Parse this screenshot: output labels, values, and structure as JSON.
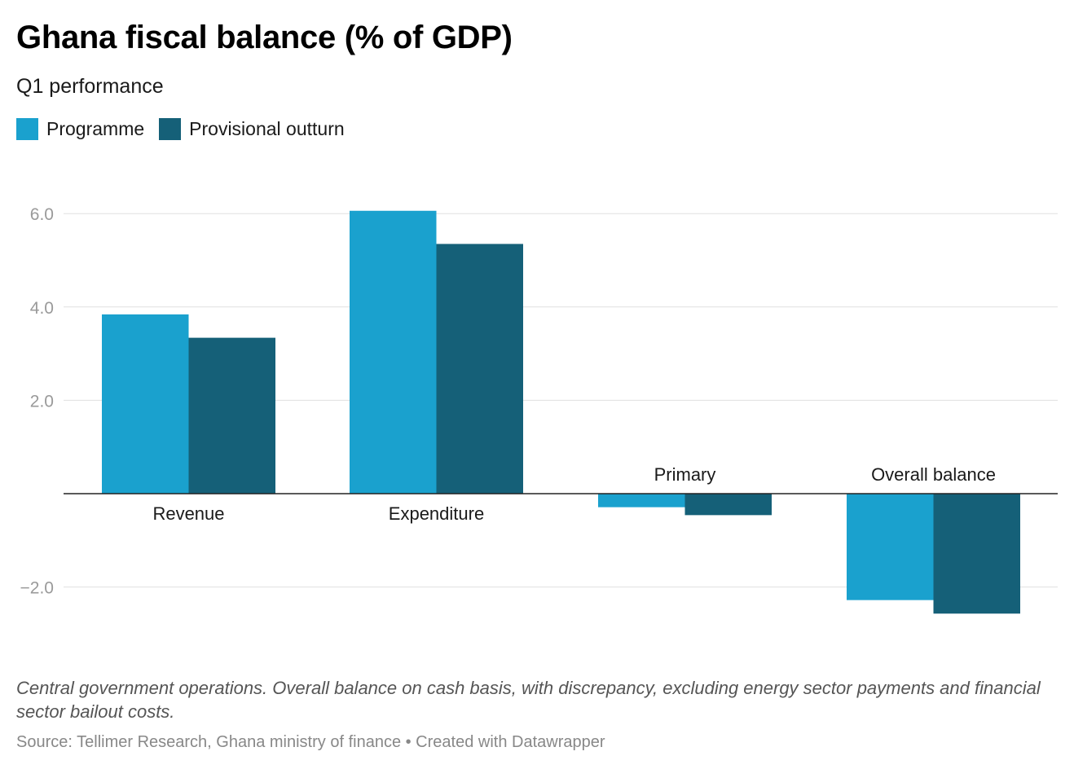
{
  "header": {
    "title": "Ghana fiscal balance (% of GDP)",
    "subtitle": "Q1 performance"
  },
  "legend": [
    {
      "label": "Programme",
      "color": "#1aa1ce"
    },
    {
      "label": "Provisional outturn",
      "color": "#156078"
    }
  ],
  "chart_data": {
    "type": "bar",
    "categories": [
      "Revenue",
      "Expenditure",
      "Primary",
      "Overall balance"
    ],
    "series": [
      {
        "name": "Programme",
        "color": "#1aa1ce",
        "values": [
          3.84,
          6.06,
          -0.29,
          -2.28
        ]
      },
      {
        "name": "Provisional outturn",
        "color": "#156078",
        "values": [
          3.34,
          5.35,
          -0.46,
          -2.57
        ]
      }
    ],
    "yticks": [
      6.0,
      4.0,
      2.0,
      -2.0
    ],
    "ytick_labels": [
      "6.0",
      "4.0",
      "2.0",
      "−2.0"
    ],
    "ylim": [
      -3.1,
      6.6
    ],
    "grid": true,
    "legend_position": "top-left"
  },
  "footer": {
    "notes": "Central government operations. Overall balance on cash basis, with discrepancy, excluding energy sector payments and financial sector bailout costs.",
    "source": "Source: Tellimer Research, Ghana ministry of finance • Created with Datawrapper"
  }
}
